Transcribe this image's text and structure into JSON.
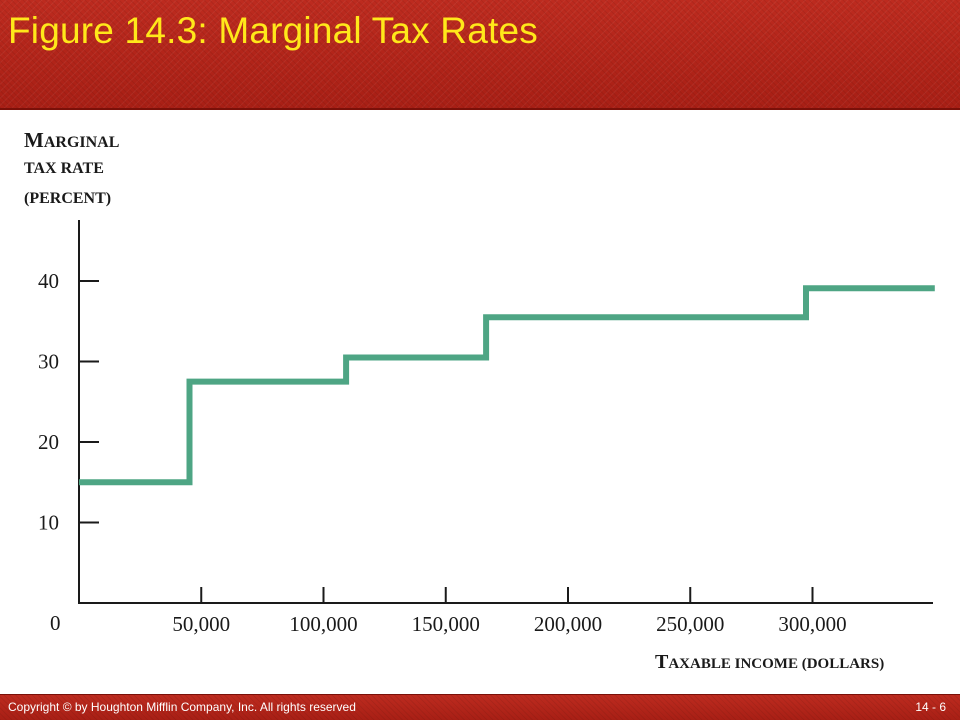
{
  "slide": {
    "title": "Figure 14.3: Marginal Tax Rates",
    "copyright": "Copyright © by Houghton Mifflin Company, Inc. All rights reserved",
    "page": "14 - 6"
  },
  "colors": {
    "header_bg": "#b5261b",
    "title_text": "#ffe81a",
    "line": "#4ea584",
    "axis": "#1a1a1a"
  },
  "chart_data": {
    "type": "line",
    "step": true,
    "ylabel_lines": [
      "Marginal",
      "tax rate",
      "(percent)"
    ],
    "xlabel": "Taxable income (dollars)",
    "origin_label": "0",
    "y_ticks": [
      10,
      20,
      30,
      40
    ],
    "y_tick_labels": [
      "10",
      "20",
      "30",
      "40"
    ],
    "x_ticks": [
      50000,
      100000,
      150000,
      200000,
      250000,
      300000
    ],
    "x_tick_labels": [
      "50,000",
      "100,000",
      "150,000",
      "200,000",
      "250,000",
      "300,000"
    ],
    "xlim": [
      0,
      350000
    ],
    "ylim": [
      0,
      48
    ],
    "grid": false,
    "series": [
      {
        "x": [
          0,
          45200,
          45200,
          109250,
          109250,
          166500,
          166500,
          297350,
          297350,
          350000
        ],
        "values": [
          15,
          15,
          27.5,
          27.5,
          30.5,
          30.5,
          35.5,
          35.5,
          39.1,
          39.1
        ]
      }
    ]
  }
}
